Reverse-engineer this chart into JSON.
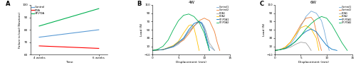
{
  "panel_A": {
    "xlabel": "Time",
    "ylabel": "Failure to load (Newtons)",
    "xticks": [
      "4 weeks",
      "6 weeks"
    ],
    "ylim": [
      60,
      100
    ],
    "yticks": [
      60,
      70,
      80,
      90,
      100
    ],
    "lines": [
      {
        "label": "Control",
        "color": "#5b9bd5",
        "x": [
          0,
          1
        ],
        "y": [
          74,
          80
        ]
      },
      {
        "label": "PDA",
        "color": "#ff0000",
        "x": [
          0,
          1
        ],
        "y": [
          67,
          65
        ]
      },
      {
        "label": "VP-PDA",
        "color": "#00b050",
        "x": [
          0,
          1
        ],
        "y": [
          83,
          97
        ]
      }
    ]
  },
  "panel_B": {
    "title": "4W",
    "xlabel": "Displacement (mm)",
    "ylabel": "Load (N)",
    "xlim": [
      0,
      15
    ],
    "ylim": [
      -10,
      110
    ],
    "yticks": [
      -10,
      10,
      30,
      50,
      70,
      90,
      110
    ],
    "xticks": [
      0,
      5,
      10,
      15
    ],
    "curves": [
      {
        "label": "Control1",
        "color": "#74a9d8",
        "x": [
          0,
          2,
          4,
          5,
          6,
          7,
          8,
          8.5,
          9,
          9.5,
          10,
          10.3,
          10.5,
          11,
          12
        ],
        "y": [
          0,
          2,
          8,
          15,
          28,
          45,
          58,
          65,
          70,
          68,
          58,
          48,
          30,
          10,
          0
        ]
      },
      {
        "label": "Control2",
        "color": "#ed7d31",
        "x": [
          0,
          2,
          4,
          6,
          7,
          8,
          9,
          10,
          11,
          12,
          12.5,
          13
        ],
        "y": [
          0,
          2,
          10,
          25,
          40,
          58,
          72,
          78,
          72,
          45,
          20,
          0
        ]
      },
      {
        "label": "PDA1",
        "color": "#a0a0a0",
        "x": [
          0,
          2,
          4,
          6,
          7,
          8,
          9,
          9.5,
          10,
          10.5,
          11,
          12
        ],
        "y": [
          0,
          2,
          10,
          28,
          45,
          60,
          68,
          65,
          55,
          40,
          18,
          0
        ]
      },
      {
        "label": "PDA2",
        "color": "#ffc000",
        "x": [
          0,
          2,
          4,
          5,
          6,
          7,
          7.5,
          8,
          8.5,
          9
        ],
        "y": [
          0,
          2,
          12,
          22,
          42,
          60,
          62,
          55,
          30,
          0
        ]
      },
      {
        "label": "VP-PDA1",
        "color": "#0070c0",
        "x": [
          0,
          2,
          4,
          6,
          7,
          8,
          9,
          9.5,
          10,
          10.5,
          11
        ],
        "y": [
          0,
          2,
          10,
          30,
          50,
          65,
          70,
          65,
          50,
          25,
          0
        ]
      },
      {
        "label": "VP-PDA2",
        "color": "#00b050",
        "x": [
          0,
          1,
          2,
          3,
          4,
          5,
          6,
          7,
          8,
          9,
          10,
          10.5,
          11
        ],
        "y": [
          0,
          3,
          10,
          25,
          50,
          72,
          85,
          88,
          82,
          68,
          42,
          20,
          0
        ]
      }
    ]
  },
  "panel_C": {
    "title": "6W",
    "xlabel": "Displacement (mm)",
    "ylabel": "Load (N)",
    "xlim": [
      0,
      15
    ],
    "ylim": [
      -10,
      110
    ],
    "yticks": [
      -10,
      10,
      30,
      50,
      70,
      90,
      110
    ],
    "xticks": [
      0,
      5,
      10,
      15
    ],
    "curves": [
      {
        "label": "Control1",
        "color": "#74a9d8",
        "x": [
          0,
          1,
          2,
          3,
          4,
          5,
          6,
          7,
          8,
          9,
          9.5,
          10,
          10.5
        ],
        "y": [
          0,
          2,
          6,
          15,
          32,
          58,
          82,
          95,
          90,
          72,
          50,
          22,
          0
        ]
      },
      {
        "label": "Control2",
        "color": "#ed7d31",
        "x": [
          0,
          1,
          2,
          3,
          4,
          5,
          6,
          7,
          7.5,
          8,
          9
        ],
        "y": [
          0,
          2,
          8,
          20,
          40,
          62,
          78,
          80,
          72,
          45,
          0
        ]
      },
      {
        "label": "PDA1",
        "color": "#a0a0a0",
        "x": [
          0,
          0.5,
          1,
          2,
          3,
          4,
          5,
          6,
          6.5,
          7
        ],
        "y": [
          0,
          1,
          2,
          4,
          8,
          15,
          20,
          18,
          10,
          0
        ]
      },
      {
        "label": "PDA2",
        "color": "#ffc000",
        "x": [
          0,
          1,
          2,
          3,
          4,
          5,
          6,
          7,
          8,
          8.5
        ],
        "y": [
          0,
          2,
          8,
          20,
          38,
          55,
          60,
          52,
          30,
          0
        ]
      },
      {
        "label": "VP-PDA1",
        "color": "#0070c0",
        "x": [
          0,
          1,
          2,
          3,
          4,
          5,
          6,
          7,
          8,
          9,
          10,
          11,
          12
        ],
        "y": [
          0,
          2,
          5,
          12,
          22,
          36,
          46,
          52,
          45,
          28,
          12,
          3,
          0
        ]
      },
      {
        "label": "VP-PDA2",
        "color": "#00b050",
        "x": [
          0,
          1,
          2,
          3,
          4,
          5,
          6,
          7,
          8,
          9,
          10,
          11,
          12,
          13,
          14
        ],
        "y": [
          0,
          2,
          5,
          12,
          22,
          35,
          52,
          65,
          75,
          82,
          78,
          62,
          40,
          18,
          0
        ]
      }
    ]
  }
}
